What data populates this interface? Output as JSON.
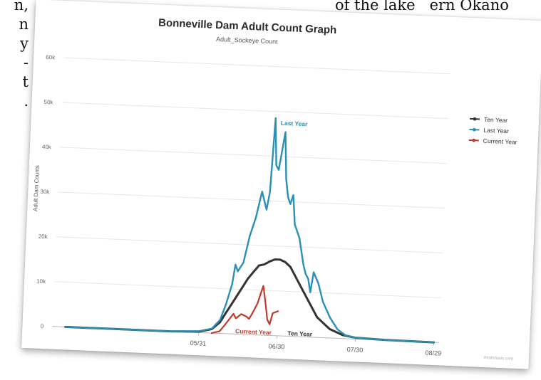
{
  "page": {
    "left_text": [
      "n,",
      "n",
      "y",
      "-",
      "t",
      "."
    ],
    "top_text": "of the lake   ern Okano"
  },
  "chart_data": {
    "type": "line",
    "title": "Bonneville Dam Adult Count Graph",
    "subtitle": "Adult_Sockeye Count",
    "ylabel": "Adult Dam Counts",
    "xlabel": "",
    "ylim": [
      0,
      60000
    ],
    "y_ticks": [
      0,
      10000,
      20000,
      30000,
      40000,
      50000,
      60000
    ],
    "y_tick_labels": [
      "0",
      "10k",
      "20k",
      "30k",
      "40k",
      "50k",
      "60k"
    ],
    "x_ticks": [
      "05/31",
      "06/30",
      "07/30",
      "08/29"
    ],
    "grid": true,
    "legend_position": "right",
    "watermark": "mrahmans.com",
    "series": [
      {
        "name": "Ten Year",
        "color": "#333333",
        "label": "Ten Year",
        "x": [
          "04/10",
          "05/01",
          "05/20",
          "05/31",
          "06/05",
          "06/08",
          "06/10",
          "06/13",
          "06/16",
          "06/18",
          "06/20",
          "06/22",
          "06/24",
          "06/26",
          "06/28",
          "06/30",
          "07/02",
          "07/04",
          "07/06",
          "07/09",
          "07/12",
          "07/15",
          "07/20",
          "07/25",
          "07/30",
          "08/10",
          "08/29"
        ],
        "values": [
          0,
          0,
          0,
          200,
          900,
          2500,
          4500,
          7500,
          10500,
          12500,
          14000,
          15500,
          15800,
          16500,
          17000,
          17000,
          16500,
          15500,
          13500,
          10500,
          7500,
          4500,
          2000,
          800,
          300,
          80,
          0
        ]
      },
      {
        "name": "Last Year",
        "color": "#2a8fb5",
        "label": "Last Year",
        "x": [
          "04/10",
          "05/01",
          "05/20",
          "05/31",
          "06/05",
          "06/08",
          "06/10",
          "06/12",
          "06/13",
          "06/14",
          "06/16",
          "06/18",
          "06/20",
          "06/22",
          "06/24",
          "06/25",
          "06/26",
          "06/27",
          "06/28",
          "06/30",
          "07/01",
          "07/02",
          "07/03",
          "07/04",
          "07/05",
          "07/07",
          "07/09",
          "07/10",
          "07/11",
          "07/12",
          "07/13",
          "07/15",
          "07/17",
          "07/20",
          "07/23",
          "07/26",
          "07/30",
          "08/10",
          "08/29"
        ],
        "values": [
          0,
          0,
          0,
          300,
          1000,
          3000,
          6500,
          11000,
          15500,
          14000,
          16000,
          22000,
          26000,
          32000,
          28000,
          32000,
          48500,
          38000,
          37000,
          45500,
          35000,
          31000,
          29500,
          31500,
          25000,
          22000,
          16000,
          14000,
          13000,
          10000,
          14500,
          12000,
          8000,
          4500,
          2000,
          800,
          300,
          80,
          0
        ]
      },
      {
        "name": "Current Year",
        "color": "#c0392b",
        "label": "Current Year",
        "x": [
          "06/05",
          "06/08",
          "06/10",
          "06/13",
          "06/14",
          "06/16",
          "06/18",
          "06/19",
          "06/20",
          "06/22",
          "06/24",
          "06/25",
          "06/26",
          "06/27",
          "06/28",
          "06/30"
        ],
        "values": [
          0,
          500,
          2000,
          4500,
          3500,
          4500,
          4000,
          3500,
          4500,
          7000,
          11000,
          7500,
          3500,
          2500,
          5000,
          5500
        ]
      }
    ],
    "legend": [
      "Ten Year",
      "Last Year",
      "Current Year"
    ]
  }
}
